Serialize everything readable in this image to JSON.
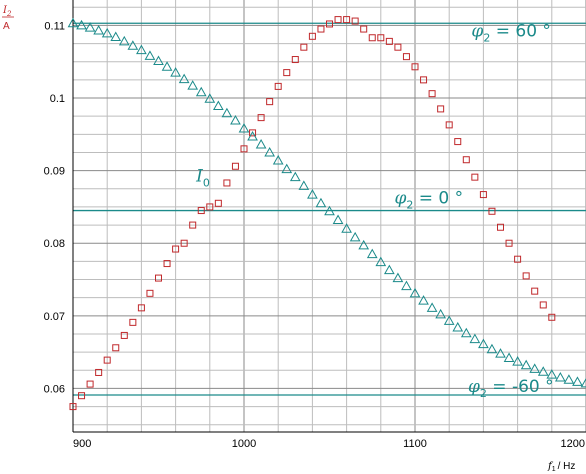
{
  "chart_data": {
    "type": "scatter",
    "xlim": [
      900,
      1200
    ],
    "ylim": [
      0.054,
      0.1135
    ],
    "x_ticks": [
      900,
      1000,
      1100,
      1200
    ],
    "y_ticks": [
      0.06,
      0.07,
      0.08,
      0.09,
      0.1,
      0.11
    ],
    "x_tick_labels": [
      "900",
      "1000",
      "1100",
      "1200"
    ],
    "y_tick_labels": [
      "0.06",
      "0.07",
      "0.08",
      "0.09",
      "0.1",
      "0.11"
    ],
    "grid": true,
    "ylabel": {
      "symbol": "I",
      "sub": "2",
      "unit": "A"
    },
    "xlabel": {
      "symbol": "f",
      "sub": "1",
      "unit": "/ Hz"
    },
    "series": [
      {
        "marker": "square",
        "color": "#c0282b",
        "points": [
          [
            900,
            0.0575
          ],
          [
            905,
            0.059
          ],
          [
            910,
            0.0606
          ],
          [
            915,
            0.0622
          ],
          [
            920,
            0.0639
          ],
          [
            925,
            0.0656
          ],
          [
            930,
            0.0673
          ],
          [
            935,
            0.0691
          ],
          [
            940,
            0.0711
          ],
          [
            945,
            0.0731
          ],
          [
            950,
            0.0752
          ],
          [
            955,
            0.0772
          ],
          [
            960,
            0.0792
          ],
          [
            965,
            0.08
          ],
          [
            970,
            0.0825
          ],
          [
            975,
            0.0845
          ],
          [
            980,
            0.085
          ],
          [
            985,
            0.0855
          ],
          [
            990,
            0.0883
          ],
          [
            995,
            0.0906
          ],
          [
            1000,
            0.093
          ],
          [
            1005,
            0.0952
          ],
          [
            1010,
            0.0973
          ],
          [
            1015,
            0.0995
          ],
          [
            1020,
            0.1016
          ],
          [
            1025,
            0.1035
          ],
          [
            1030,
            0.1053
          ],
          [
            1035,
            0.107
          ],
          [
            1040,
            0.1085
          ],
          [
            1045,
            0.1095
          ],
          [
            1050,
            0.1102
          ],
          [
            1055,
            0.1108
          ],
          [
            1060,
            0.1108
          ],
          [
            1065,
            0.1106
          ],
          [
            1070,
            0.1095
          ],
          [
            1075,
            0.1083
          ],
          [
            1080,
            0.1083
          ],
          [
            1085,
            0.1078
          ],
          [
            1090,
            0.107
          ],
          [
            1095,
            0.1057
          ],
          [
            1100,
            0.1043
          ],
          [
            1105,
            0.1025
          ],
          [
            1110,
            0.1006
          ],
          [
            1115,
            0.0985
          ],
          [
            1120,
            0.0963
          ],
          [
            1125,
            0.094
          ],
          [
            1130,
            0.0915
          ],
          [
            1135,
            0.0891
          ],
          [
            1140,
            0.0867
          ],
          [
            1145,
            0.0844
          ],
          [
            1150,
            0.0822
          ],
          [
            1155,
            0.08
          ],
          [
            1160,
            0.0778
          ],
          [
            1165,
            0.0755
          ],
          [
            1170,
            0.0734
          ],
          [
            1175,
            0.0715
          ],
          [
            1180,
            0.0698
          ]
        ]
      },
      {
        "marker": "triangle",
        "color": "#1b8a8a",
        "points": [
          [
            900,
            0.1103
          ],
          [
            905,
            0.11
          ],
          [
            910,
            0.1097
          ],
          [
            915,
            0.1093
          ],
          [
            920,
            0.1089
          ],
          [
            925,
            0.1084
          ],
          [
            930,
            0.1078
          ],
          [
            935,
            0.1072
          ],
          [
            940,
            0.1066
          ],
          [
            945,
            0.1058
          ],
          [
            950,
            0.1051
          ],
          [
            955,
            0.1043
          ],
          [
            960,
            0.1035
          ],
          [
            965,
            0.1026
          ],
          [
            970,
            0.1017
          ],
          [
            975,
            0.1008
          ],
          [
            980,
            0.0999
          ],
          [
            985,
            0.0989
          ],
          [
            990,
            0.0979
          ],
          [
            995,
            0.0969
          ],
          [
            1000,
            0.0958
          ],
          [
            1005,
            0.0947
          ],
          [
            1010,
            0.0936
          ],
          [
            1015,
            0.0925
          ],
          [
            1020,
            0.0914
          ],
          [
            1025,
            0.0902
          ],
          [
            1030,
            0.0891
          ],
          [
            1035,
            0.0879
          ],
          [
            1040,
            0.0867
          ],
          [
            1045,
            0.0855
          ],
          [
            1050,
            0.0844
          ],
          [
            1055,
            0.0832
          ],
          [
            1060,
            0.082
          ],
          [
            1065,
            0.0808
          ],
          [
            1070,
            0.0797
          ],
          [
            1075,
            0.0785
          ],
          [
            1080,
            0.0774
          ],
          [
            1085,
            0.0763
          ],
          [
            1090,
            0.0752
          ],
          [
            1095,
            0.0741
          ],
          [
            1100,
            0.0731
          ],
          [
            1105,
            0.0721
          ],
          [
            1110,
            0.0711
          ],
          [
            1115,
            0.0702
          ],
          [
            1120,
            0.0693
          ],
          [
            1125,
            0.0684
          ],
          [
            1130,
            0.0676
          ],
          [
            1135,
            0.0668
          ],
          [
            1140,
            0.0661
          ],
          [
            1145,
            0.0654
          ],
          [
            1150,
            0.0648
          ],
          [
            1155,
            0.0642
          ],
          [
            1160,
            0.0637
          ],
          [
            1165,
            0.0632
          ],
          [
            1170,
            0.0627
          ],
          [
            1175,
            0.0623
          ],
          [
            1180,
            0.0619
          ],
          [
            1185,
            0.0615
          ],
          [
            1190,
            0.0612
          ],
          [
            1195,
            0.0609
          ],
          [
            1200,
            0.0607
          ]
        ]
      }
    ],
    "reference_lines": [
      {
        "y": 0.1103,
        "color": "#1b8a8a"
      },
      {
        "y": 0.0845,
        "color": "#1b8a8a"
      },
      {
        "y": 0.0591,
        "color": "#1b8a8a"
      }
    ],
    "annotations": [
      {
        "symbol": "φ",
        "sub": "2",
        "text": " =  60 °",
        "x": 1133,
        "y": 0.1085,
        "color": "#1b8a8a"
      },
      {
        "symbol": "φ",
        "sub": "2",
        "text": " = 0 °",
        "x": 1088,
        "y": 0.0855,
        "color": "#1b8a8a"
      },
      {
        "symbol": "φ",
        "sub": "2",
        "text": " = -60 °",
        "x": 1131,
        "y": 0.0595,
        "color": "#1b8a8a"
      },
      {
        "symbol": "I",
        "sub": "0",
        "text": "",
        "x": 972,
        "y": 0.0885,
        "color": "#c0282b"
      }
    ]
  }
}
